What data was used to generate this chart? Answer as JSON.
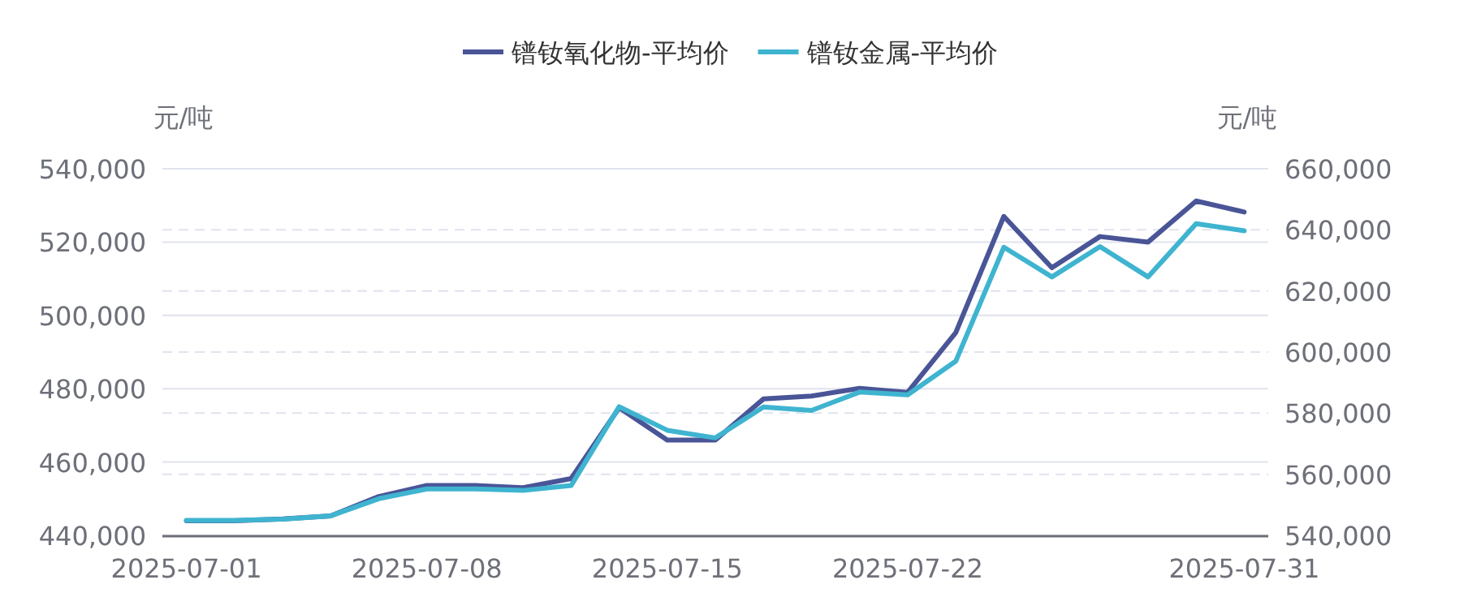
{
  "chart_data": {
    "type": "line",
    "ylabel": "元/吨",
    "y2label": "元/吨",
    "legend": "top",
    "grid": "y",
    "marker": "none",
    "line_style": "solid",
    "categories": [
      "2025-07-01",
      null,
      null,
      null,
      null,
      "2025-07-08",
      null,
      null,
      null,
      null,
      "2025-07-15",
      null,
      null,
      null,
      null,
      "2025-07-22",
      null,
      null,
      null,
      null,
      null,
      null,
      "2025-07-31"
    ],
    "series": [
      {
        "name": "镨钕氧化物-平均价",
        "color": "#4a5597",
        "values": [
          444000,
          444000,
          444500,
          445300,
          450600,
          453600,
          453600,
          453000,
          455500,
          474800,
          466000,
          466000,
          477200,
          478000,
          480100,
          479000,
          495300,
          527000,
          513000,
          521500,
          520000,
          531200,
          528200
        ]
      },
      {
        "name": "镨钕金属-平均价",
        "color": "#3fb4d0",
        "axis": "y2",
        "values": [
          544900,
          544900,
          545300,
          546400,
          552000,
          555200,
          555200,
          554700,
          556300,
          582100,
          574400,
          571900,
          582000,
          580900,
          586900,
          586000,
          597000,
          634300,
          624600,
          634500,
          624600,
          642000,
          639700
        ]
      }
    ],
    "ylim": [
      440000,
      540000
    ],
    "yticks": [
      {
        "value": 440000,
        "label": "440,000"
      },
      {
        "value": 460000,
        "label": "460,000"
      },
      {
        "value": 480000,
        "label": "480,000"
      },
      {
        "value": 500000,
        "label": "500,000"
      },
      {
        "value": 520000,
        "label": "520,000"
      },
      {
        "value": 540000,
        "label": "540,000"
      }
    ],
    "y2lim": [
      540000,
      660000
    ],
    "y2ticks": [
      {
        "value": 540000,
        "label": "540,000"
      },
      {
        "value": 560000,
        "label": "560,000"
      },
      {
        "value": 580000,
        "label": "580,000"
      },
      {
        "value": 600000,
        "label": "600,000"
      },
      {
        "value": 620000,
        "label": "620,000"
      },
      {
        "value": 640000,
        "label": "640,000"
      },
      {
        "value": 660000,
        "label": "660,000"
      }
    ]
  }
}
